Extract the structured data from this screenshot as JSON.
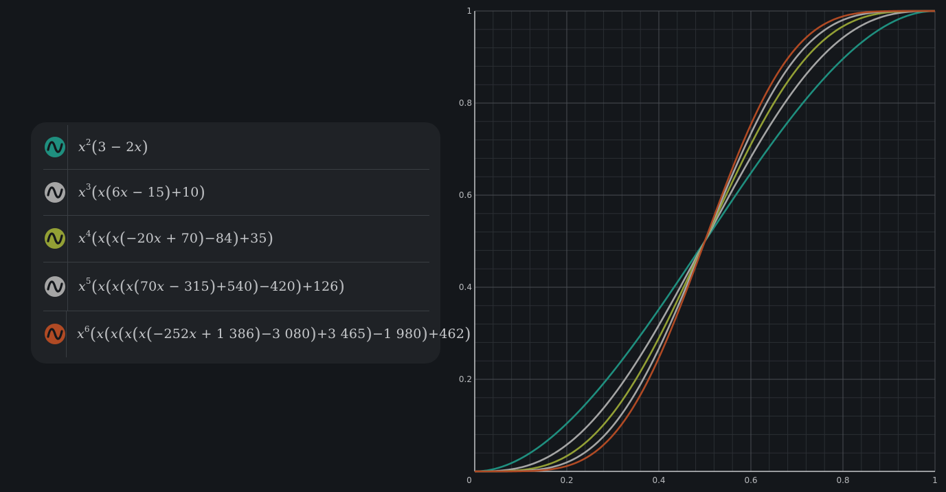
{
  "expressions": [
    {
      "icon": "wave-icon",
      "color": "#1f8f7f"
    },
    {
      "icon": "wave-icon",
      "color": "#a5a5a5"
    },
    {
      "icon": "wave-icon",
      "color": "#93a035"
    },
    {
      "icon": "wave-icon",
      "color": "#a5a5a5"
    },
    {
      "icon": "wave-icon",
      "color": "#b04a24"
    }
  ],
  "chart_data": {
    "type": "line",
    "xlim": [
      0,
      1
    ],
    "ylim": [
      0,
      1
    ],
    "grid": true,
    "x_ticks": [
      "0",
      "0.2",
      "0.4",
      "0.6",
      "0.8",
      "1"
    ],
    "y_ticks": [
      "0.2",
      "0.4",
      "0.6",
      "0.8",
      "1"
    ],
    "x_tick_values": [
      0,
      0.2,
      0.4,
      0.6,
      0.8,
      1
    ],
    "y_tick_values": [
      0.2,
      0.4,
      0.6,
      0.8,
      1
    ],
    "series": [
      {
        "color": "#1f8f7f",
        "coefficients": [
          0,
          0,
          3,
          -2
        ]
      },
      {
        "color": "#a5a5a5",
        "coefficients": [
          0,
          0,
          0,
          10,
          -15,
          6
        ]
      },
      {
        "color": "#93a035",
        "coefficients": [
          0,
          0,
          0,
          0,
          35,
          -84,
          70,
          -20
        ]
      },
      {
        "color": "#a5a5a5",
        "coefficients": [
          0,
          0,
          0,
          0,
          0,
          126,
          -420,
          540,
          -315,
          70
        ]
      },
      {
        "color": "#b04a24",
        "coefficients": [
          0,
          0,
          0,
          0,
          0,
          0,
          462,
          -1980,
          3465,
          -3080,
          1386,
          -252
        ]
      }
    ]
  }
}
